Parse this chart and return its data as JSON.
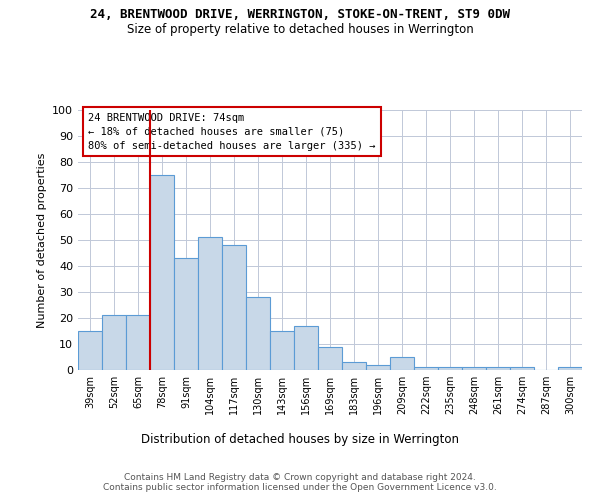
{
  "title": "24, BRENTWOOD DRIVE, WERRINGTON, STOKE-ON-TRENT, ST9 0DW",
  "subtitle": "Size of property relative to detached houses in Werrington",
  "xlabel": "Distribution of detached houses by size in Werrington",
  "ylabel": "Number of detached properties",
  "bar_color": "#c8d8e8",
  "bar_edge_color": "#5b9bd5",
  "categories": [
    "39sqm",
    "52sqm",
    "65sqm",
    "78sqm",
    "91sqm",
    "104sqm",
    "117sqm",
    "130sqm",
    "143sqm",
    "156sqm",
    "169sqm",
    "183sqm",
    "196sqm",
    "209sqm",
    "222sqm",
    "235sqm",
    "248sqm",
    "261sqm",
    "274sqm",
    "287sqm",
    "300sqm"
  ],
  "values": [
    15,
    21,
    21,
    75,
    43,
    51,
    48,
    28,
    15,
    17,
    9,
    3,
    2,
    5,
    1,
    1,
    1,
    1,
    1,
    0,
    1
  ],
  "vline_x": 2.5,
  "vline_color": "#cc0000",
  "annotation_text": "24 BRENTWOOD DRIVE: 74sqm\n← 18% of detached houses are smaller (75)\n80% of semi-detached houses are larger (335) →",
  "annotation_box_color": "#ffffff",
  "annotation_box_edge": "#cc0000",
  "ylim": [
    0,
    100
  ],
  "yticks": [
    0,
    10,
    20,
    30,
    40,
    50,
    60,
    70,
    80,
    90,
    100
  ],
  "footnote": "Contains HM Land Registry data © Crown copyright and database right 2024.\nContains public sector information licensed under the Open Government Licence v3.0.",
  "bg_color": "#ffffff",
  "grid_color": "#c0c8d8"
}
